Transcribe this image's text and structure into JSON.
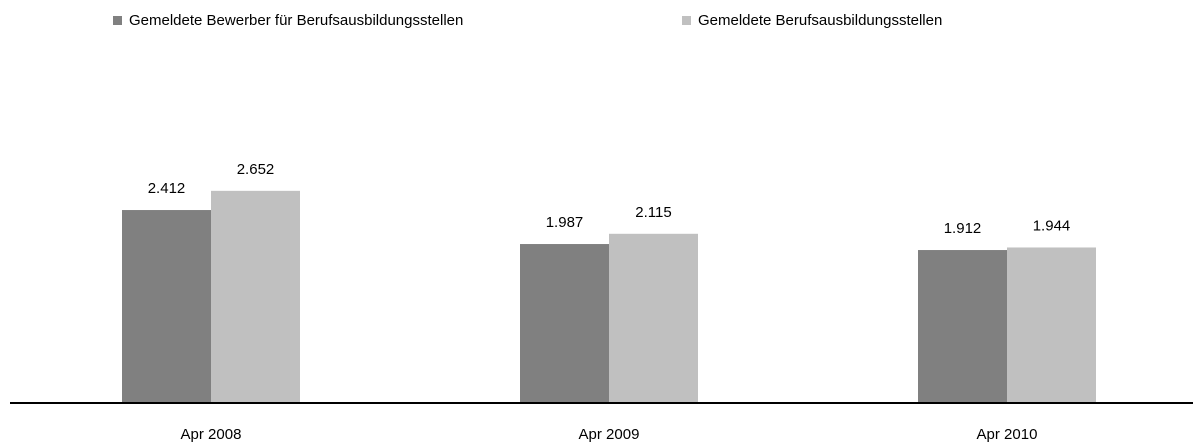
{
  "chart_data": {
    "type": "bar",
    "categories": [
      "Apr 2008",
      "Apr 2009",
      "Apr 2010"
    ],
    "series": [
      {
        "name": "Gemeldete Bewerber für Berufsausbildungsstellen",
        "color": "#808080",
        "values": [
          2412,
          1987,
          1912
        ],
        "value_labels": [
          "2.412",
          "1.987",
          "1.912"
        ]
      },
      {
        "name": "Gemeldete Berufsausbildungsstellen",
        "color": "#c0c0c0",
        "values": [
          2652,
          2115,
          1944
        ],
        "value_labels": [
          "2.652",
          "2.115",
          "1.944"
        ]
      }
    ],
    "ylim": [
      0,
      3000
    ]
  }
}
